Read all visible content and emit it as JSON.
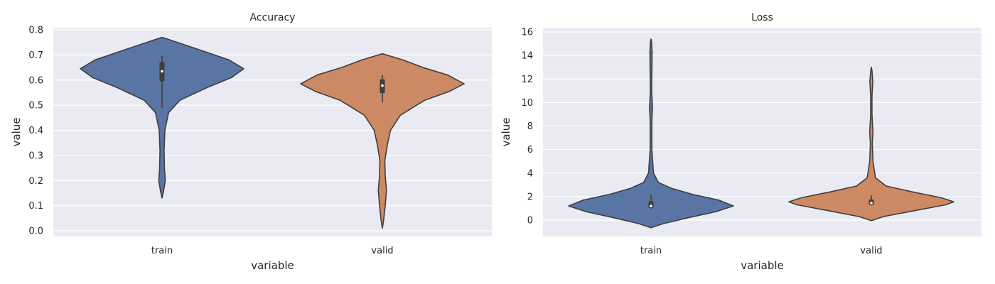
{
  "chart_data": [
    {
      "type": "violin",
      "title": "Accuracy",
      "xlabel": "variable",
      "ylabel": "value",
      "categories": [
        "train",
        "valid"
      ],
      "ylim": [
        -0.03,
        0.81
      ],
      "yticks": [
        0.0,
        0.1,
        0.2,
        0.3,
        0.4,
        0.5,
        0.6,
        0.7,
        0.8
      ],
      "ytick_labels": [
        "0.0",
        "0.1",
        "0.2",
        "0.3",
        "0.4",
        "0.5",
        "0.6",
        "0.7",
        "0.8"
      ],
      "grid": true,
      "series": [
        {
          "category": "train",
          "color": "#5875a4",
          "density_profile": [
            [
              0.13,
              0.0
            ],
            [
              0.16,
              0.02
            ],
            [
              0.2,
              0.04
            ],
            [
              0.25,
              0.03
            ],
            [
              0.32,
              0.025
            ],
            [
              0.4,
              0.035
            ],
            [
              0.47,
              0.08
            ],
            [
              0.52,
              0.22
            ],
            [
              0.57,
              0.55
            ],
            [
              0.61,
              0.85
            ],
            [
              0.645,
              1.0
            ],
            [
              0.68,
              0.82
            ],
            [
              0.71,
              0.55
            ],
            [
              0.74,
              0.28
            ],
            [
              0.765,
              0.05
            ],
            [
              0.77,
              0.0
            ]
          ],
          "median": 0.635,
          "q1": 0.595,
          "q3": 0.672,
          "whisker_low": 0.49,
          "whisker_high": 0.695
        },
        {
          "category": "valid",
          "color": "#cc8963",
          "density_profile": [
            [
              0.01,
              0.0
            ],
            [
              0.04,
              0.015
            ],
            [
              0.1,
              0.035
            ],
            [
              0.16,
              0.05
            ],
            [
              0.22,
              0.035
            ],
            [
              0.28,
              0.03
            ],
            [
              0.34,
              0.06
            ],
            [
              0.4,
              0.1
            ],
            [
              0.46,
              0.22
            ],
            [
              0.52,
              0.52
            ],
            [
              0.555,
              0.82
            ],
            [
              0.585,
              1.0
            ],
            [
              0.62,
              0.8
            ],
            [
              0.65,
              0.5
            ],
            [
              0.68,
              0.25
            ],
            [
              0.7,
              0.05
            ],
            [
              0.705,
              0.0
            ]
          ],
          "median": 0.578,
          "q1": 0.548,
          "q3": 0.603,
          "whisker_low": 0.51,
          "whisker_high": 0.62
        }
      ]
    },
    {
      "type": "violin",
      "title": "Loss",
      "xlabel": "variable",
      "ylabel": "value",
      "categories": [
        "train",
        "valid"
      ],
      "ylim": [
        -1.3,
        16.3
      ],
      "yticks": [
        0,
        2,
        4,
        6,
        8,
        10,
        12,
        14,
        16
      ],
      "ytick_labels": [
        "0",
        "2",
        "4",
        "6",
        "8",
        "10",
        "12",
        "14",
        "16"
      ],
      "grid": true,
      "series": [
        {
          "category": "train",
          "color": "#5875a4",
          "density_profile": [
            [
              -0.65,
              0.0
            ],
            [
              -0.3,
              0.15
            ],
            [
              0.2,
              0.45
            ],
            [
              0.7,
              0.78
            ],
            [
              1.2,
              1.0
            ],
            [
              1.7,
              0.82
            ],
            [
              2.2,
              0.5
            ],
            [
              2.7,
              0.25
            ],
            [
              3.2,
              0.09
            ],
            [
              4.0,
              0.03
            ],
            [
              6.0,
              0.01
            ],
            [
              8.5,
              0.01
            ],
            [
              9.5,
              0.018
            ],
            [
              11.0,
              0.008
            ],
            [
              13.5,
              0.012
            ],
            [
              14.3,
              0.014
            ],
            [
              15.2,
              0.006
            ],
            [
              15.4,
              0.0
            ]
          ],
          "median": 1.2,
          "q1": 1.05,
          "q3": 1.6,
          "whisker_low": 0.95,
          "whisker_high": 2.2
        },
        {
          "category": "valid",
          "color": "#cc8963",
          "density_profile": [
            [
              -0.05,
              0.0
            ],
            [
              0.3,
              0.15
            ],
            [
              0.8,
              0.52
            ],
            [
              1.3,
              0.9
            ],
            [
              1.55,
              1.0
            ],
            [
              1.9,
              0.85
            ],
            [
              2.4,
              0.5
            ],
            [
              2.9,
              0.18
            ],
            [
              3.6,
              0.05
            ],
            [
              5.0,
              0.02
            ],
            [
              6.5,
              0.012
            ],
            [
              7.5,
              0.02
            ],
            [
              9.0,
              0.008
            ],
            [
              10.5,
              0.008
            ],
            [
              11.8,
              0.018
            ],
            [
              12.7,
              0.008
            ],
            [
              13.0,
              0.0
            ]
          ],
          "median": 1.45,
          "q1": 1.3,
          "q3": 1.75,
          "whisker_low": 1.25,
          "whisker_high": 2.1
        }
      ]
    }
  ]
}
